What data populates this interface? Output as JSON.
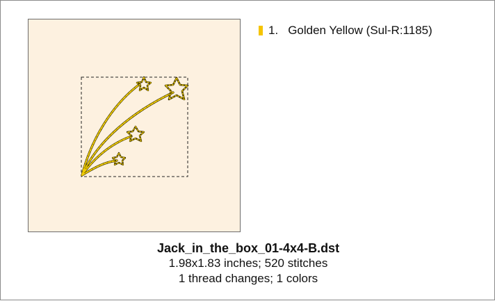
{
  "design": {
    "filename": "Jack_in_the_box_01-4x4-B.dst",
    "size_stitches": "1.98x1.83 inches; 520 stitches",
    "threads_colors": "1 thread changes; 1 colors"
  },
  "threads": [
    {
      "number": "1.",
      "name": "Golden Yellow (Sul-R:1185)",
      "color": "#f5c400"
    }
  ],
  "colors": {
    "hoop_background": "#fdf1e0",
    "stitch_thread": "#e6c200",
    "stitch_outline": "#3a3000"
  },
  "icons": [
    "shooting-stars-embroidery-design"
  ]
}
